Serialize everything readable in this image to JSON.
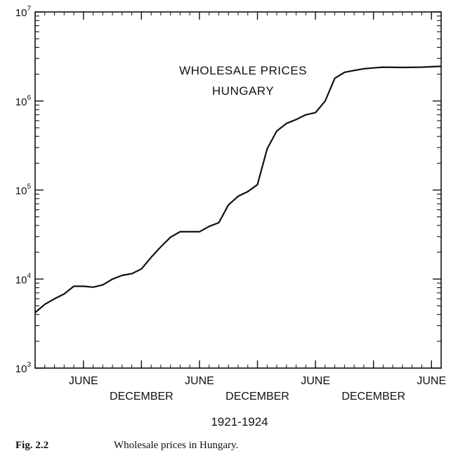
{
  "chart_data": {
    "type": "line",
    "title": "WHOLESALE PRICES\nHUNGARY",
    "xlabel": "1921-1924",
    "ylabel": "",
    "y_scale": "log",
    "ylim": [
      1000,
      10000000
    ],
    "y_ticks": [
      {
        "value": 1000,
        "base": "10",
        "exp": "3"
      },
      {
        "value": 10000,
        "base": "10",
        "exp": "4"
      },
      {
        "value": 100000,
        "base": "10",
        "exp": "5"
      },
      {
        "value": 1000000,
        "base": "10",
        "exp": "6"
      },
      {
        "value": 10000000,
        "base": "10",
        "exp": "7"
      }
    ],
    "xlim": [
      "1921-01",
      "1924-07"
    ],
    "x_ticks": [
      {
        "x": "1921-06",
        "label": "JUNE",
        "row": 1
      },
      {
        "x": "1921-12",
        "label": "DECEMBER",
        "row": 2
      },
      {
        "x": "1922-06",
        "label": "JUNE",
        "row": 1
      },
      {
        "x": "1922-12",
        "label": "DECEMBER",
        "row": 2
      },
      {
        "x": "1923-06",
        "label": "JUNE",
        "row": 1
      },
      {
        "x": "1923-12",
        "label": "DECEMBER",
        "row": 2
      },
      {
        "x": "1924-06",
        "label": "JUNE",
        "row": 1
      }
    ],
    "series": [
      {
        "color": "#111111",
        "points": [
          [
            "1921-01",
            4200
          ],
          [
            "1921-02",
            5200
          ],
          [
            "1921-03",
            6000
          ],
          [
            "1921-04",
            6800
          ],
          [
            "1921-05",
            8300
          ],
          [
            "1921-06",
            8300
          ],
          [
            "1921-07",
            8100
          ],
          [
            "1921-08",
            8600
          ],
          [
            "1921-09",
            10000
          ],
          [
            "1921-10",
            11000
          ],
          [
            "1921-11",
            11500
          ],
          [
            "1921-12",
            13000
          ],
          [
            "1922-01",
            17500
          ],
          [
            "1922-02",
            23000
          ],
          [
            "1922-03",
            29500
          ],
          [
            "1922-04",
            34000
          ],
          [
            "1922-05",
            34000
          ],
          [
            "1922-06",
            34000
          ],
          [
            "1922-07",
            39000
          ],
          [
            "1922-08",
            43000
          ],
          [
            "1922-09",
            68000
          ],
          [
            "1922-10",
            85000
          ],
          [
            "1922-11",
            96000
          ],
          [
            "1922-12",
            115000
          ],
          [
            "1923-01",
            290000
          ],
          [
            "1923-02",
            460000
          ],
          [
            "1923-03",
            560000
          ],
          [
            "1923-04",
            620000
          ],
          [
            "1923-05",
            700000
          ],
          [
            "1923-06",
            740000
          ],
          [
            "1923-07",
            1000000
          ],
          [
            "1923-08",
            1800000
          ],
          [
            "1923-09",
            2100000
          ],
          [
            "1923-10",
            2200000
          ],
          [
            "1923-11",
            2300000
          ],
          [
            "1923-12",
            2350000
          ],
          [
            "1924-01",
            2400000
          ],
          [
            "1924-03",
            2380000
          ],
          [
            "1924-05",
            2400000
          ],
          [
            "1924-07",
            2450000
          ]
        ]
      }
    ],
    "grid": false,
    "legend": "none"
  },
  "caption": {
    "figure_label": "Fig. 2.2",
    "text": "Wholesale prices in Hungary."
  }
}
